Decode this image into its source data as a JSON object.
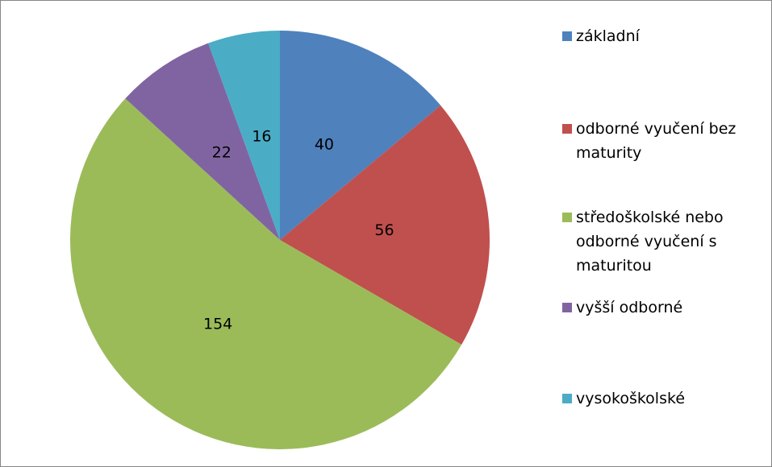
{
  "chart_data": {
    "type": "pie",
    "categories": [
      "základní",
      "odborné vyučení bez maturity",
      "středoškolské nebo odborné vyučení s maturitou",
      "vyšší odborné",
      "vysokoškolské"
    ],
    "values": [
      40,
      56,
      154,
      22,
      16
    ],
    "colors": [
      "#4f81bd",
      "#c0504d",
      "#9bbb59",
      "#8064a2",
      "#4bacc6"
    ],
    "legend": "right"
  }
}
